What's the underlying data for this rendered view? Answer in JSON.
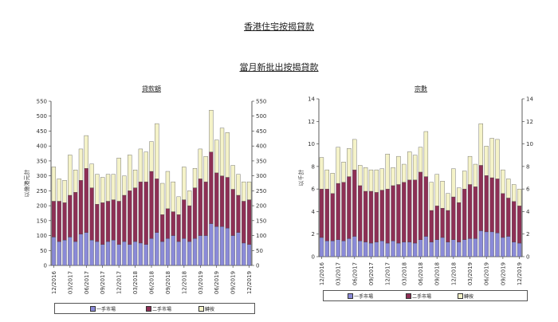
{
  "page": {
    "title": "香港住宅按揭貸款",
    "subtitle": "當月新批出按揭貸款"
  },
  "colors": {
    "first_hand": "#8a8ad8",
    "second_hand": "#8e2f55",
    "refinance": "#f5f3c8",
    "axis": "#333333"
  },
  "legend_labels": [
    "一手市場",
    "二手市場",
    "轉按"
  ],
  "chart_data": [
    {
      "type": "bar",
      "stacked": true,
      "title": "貸款額",
      "ylabel": "以億港元計",
      "ylim": [
        0,
        550
      ],
      "yticks": [
        0,
        50,
        100,
        150,
        200,
        250,
        300,
        350,
        400,
        450,
        500,
        550
      ],
      "right_axis": true,
      "grid": false,
      "legend_position": "bottom",
      "categories": [
        "12/2016",
        "01/2017",
        "02/2017",
        "03/2017",
        "04/2017",
        "05/2017",
        "06/2017",
        "07/2017",
        "08/2017",
        "09/2017",
        "10/2017",
        "11/2017",
        "12/2017",
        "01/2018",
        "02/2018",
        "03/2018",
        "04/2018",
        "05/2018",
        "06/2018",
        "07/2018",
        "08/2018",
        "09/2018",
        "10/2018",
        "11/2018",
        "12/2018",
        "01/2019",
        "02/2019",
        "03/2019",
        "04/2019",
        "05/2019",
        "06/2019",
        "07/2019",
        "08/2019",
        "09/2019",
        "10/2019",
        "11/2019",
        "12/2019"
      ],
      "tick_labels": [
        "12/2016",
        "03/2017",
        "06/2017",
        "09/2017",
        "12/2017",
        "03/2018",
        "06/2018",
        "09/2018",
        "12/2018",
        "03/2019",
        "06/2019",
        "09/2019",
        "12/2019"
      ],
      "series": [
        {
          "name": "一手市場",
          "values": [
            95,
            80,
            85,
            95,
            80,
            105,
            110,
            85,
            80,
            70,
            80,
            85,
            70,
            80,
            70,
            80,
            75,
            70,
            90,
            110,
            80,
            90,
            100,
            80,
            90,
            80,
            90,
            100,
            100,
            140,
            130,
            130,
            125,
            100,
            110,
            75,
            70
          ]
        },
        {
          "name": "二手市場",
          "values": [
            120,
            135,
            125,
            140,
            165,
            180,
            215,
            175,
            125,
            140,
            135,
            135,
            145,
            155,
            180,
            180,
            205,
            210,
            225,
            180,
            90,
            100,
            80,
            90,
            130,
            120,
            170,
            190,
            180,
            240,
            180,
            170,
            170,
            155,
            125,
            140,
            150
          ]
        },
        {
          "name": "轉按",
          "values": [
            115,
            75,
            75,
            135,
            75,
            105,
            110,
            80,
            100,
            85,
            90,
            85,
            145,
            65,
            120,
            60,
            110,
            100,
            100,
            185,
            105,
            125,
            100,
            60,
            110,
            50,
            65,
            100,
            85,
            140,
            110,
            160,
            150,
            80,
            70,
            65,
            60
          ]
        }
      ]
    },
    {
      "type": "bar",
      "stacked": true,
      "title": "宗數",
      "ylabel": "以千計",
      "ylim": [
        0,
        14
      ],
      "yticks": [
        0,
        2,
        4,
        6,
        8,
        10,
        12,
        14
      ],
      "right_axis": true,
      "grid": false,
      "legend_position": "bottom",
      "categories": [
        "12/2016",
        "01/2017",
        "02/2017",
        "03/2017",
        "04/2017",
        "05/2017",
        "06/2017",
        "07/2017",
        "08/2017",
        "09/2017",
        "10/2017",
        "11/2017",
        "12/2017",
        "01/2018",
        "02/2018",
        "03/2018",
        "04/2018",
        "05/2018",
        "06/2018",
        "07/2018",
        "08/2018",
        "09/2018",
        "10/2018",
        "11/2018",
        "12/2018",
        "01/2019",
        "02/2019",
        "03/2019",
        "04/2019",
        "05/2019",
        "06/2019",
        "07/2019",
        "08/2019",
        "09/2019",
        "10/2019",
        "11/2019",
        "12/2019"
      ],
      "tick_labels": [
        "12/2016",
        "03/2017",
        "06/2017",
        "09/2017",
        "12/2017",
        "03/2018",
        "06/2018",
        "09/2018",
        "12/2018",
        "03/2019",
        "06/2019",
        "09/2019",
        "12/2019"
      ],
      "series": [
        {
          "name": "一手市場",
          "values": [
            1.7,
            1.4,
            1.4,
            1.5,
            1.4,
            1.6,
            1.8,
            1.4,
            1.3,
            1.2,
            1.3,
            1.4,
            1.2,
            1.4,
            1.2,
            1.3,
            1.3,
            1.2,
            1.5,
            1.8,
            1.3,
            1.5,
            1.7,
            1.3,
            1.5,
            1.3,
            1.5,
            1.6,
            1.6,
            2.3,
            2.2,
            2.2,
            2.1,
            1.7,
            1.8,
            1.3,
            1.2
          ]
        },
        {
          "name": "二手市場",
          "values": [
            4.3,
            4.6,
            4.2,
            5.0,
            5.2,
            5.5,
            5.9,
            4.9,
            4.5,
            4.6,
            4.4,
            4.5,
            4.8,
            4.9,
            5.2,
            5.3,
            5.5,
            5.6,
            6.0,
            5.3,
            2.8,
            3.0,
            2.6,
            2.8,
            3.8,
            3.5,
            4.5,
            4.8,
            4.6,
            5.8,
            5.0,
            4.8,
            4.8,
            3.9,
            3.4,
            3.6,
            3.3
          ]
        },
        {
          "name": "轉按",
          "values": [
            2.8,
            1.7,
            1.8,
            3.2,
            1.8,
            2.5,
            2.7,
            1.8,
            2.1,
            1.9,
            2.0,
            1.9,
            3.1,
            1.6,
            2.5,
            1.6,
            2.5,
            2.2,
            2.2,
            4.0,
            2.5,
            2.8,
            2.4,
            1.5,
            2.5,
            1.3,
            1.6,
            2.5,
            2.0,
            3.7,
            2.6,
            3.5,
            3.5,
            2.1,
            1.7,
            1.5,
            1.5
          ]
        }
      ]
    }
  ]
}
